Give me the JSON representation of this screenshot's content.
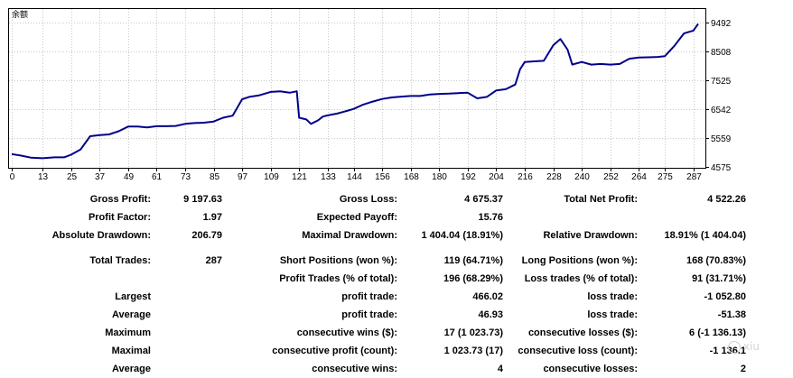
{
  "chart_data": {
    "type": "line",
    "title": "余额",
    "x": [
      0,
      4,
      8,
      13,
      18,
      22,
      25,
      29,
      33,
      37,
      41,
      45,
      49,
      53,
      57,
      61,
      65,
      69,
      73,
      77,
      81,
      85,
      89,
      93,
      97,
      100,
      104,
      109,
      113,
      117,
      120,
      121,
      124,
      126,
      129,
      131,
      133,
      137,
      141,
      144,
      148,
      152,
      156,
      160,
      164,
      168,
      172,
      176,
      180,
      184,
      188,
      192,
      196,
      200,
      204,
      208,
      212,
      214,
      216,
      220,
      224,
      228,
      231,
      234,
      236,
      240,
      244,
      248,
      252,
      256,
      260,
      264,
      268,
      272,
      275,
      279,
      283,
      287,
      289
    ],
    "y": [
      5010,
      4960,
      4890,
      4870,
      4900,
      4900,
      4990,
      5170,
      5620,
      5660,
      5680,
      5790,
      5950,
      5950,
      5920,
      5960,
      5960,
      5970,
      6040,
      6070,
      6080,
      6120,
      6250,
      6320,
      6880,
      6960,
      7010,
      7130,
      7150,
      7100,
      7150,
      6250,
      6190,
      6040,
      6160,
      6290,
      6330,
      6390,
      6480,
      6550,
      6700,
      6800,
      6890,
      6940,
      6970,
      6990,
      6990,
      7040,
      7060,
      7070,
      7090,
      7100,
      6910,
      6960,
      7180,
      7220,
      7380,
      7900,
      8150,
      8170,
      8190,
      8720,
      8930,
      8570,
      8060,
      8150,
      8060,
      8080,
      8060,
      8080,
      8260,
      8300,
      8310,
      8320,
      8350,
      8700,
      9120,
      9220,
      9450
    ],
    "ylim": [
      4575,
      9492
    ],
    "xlim": [
      0,
      289
    ],
    "x_ticks": [
      "0",
      "13",
      "25",
      "37",
      "49",
      "61",
      "73",
      "85",
      "97",
      "109",
      "121",
      "133",
      "144",
      "156",
      "168",
      "180",
      "192",
      "204",
      "216",
      "228",
      "240",
      "252",
      "264",
      "275",
      "287"
    ],
    "y_ticks": [
      "9492",
      "8508",
      "7525",
      "6542",
      "5559",
      "4575"
    ],
    "grid": true,
    "line_color": "#00008b"
  },
  "stats": {
    "rows": [
      {
        "c1_label": "Gross Profit:",
        "c1_value": "9 197.63",
        "c2_label": "Gross Loss:",
        "c2_value": "4 675.37",
        "c3_label": "Total Net Profit:",
        "c3_value": "4 522.26"
      },
      {
        "c1_label": "Profit Factor:",
        "c1_value": "1.97",
        "c2_label": "Expected Payoff:",
        "c2_value": "15.76",
        "c3_label": "",
        "c3_value": ""
      },
      {
        "c1_label": "Absolute Drawdown:",
        "c1_value": "206.79",
        "c2_label": "Maximal Drawdown:",
        "c2_value": "1 404.04 (18.91%)",
        "c3_label": "Relative Drawdown:",
        "c3_value": "18.91% (1 404.04)"
      },
      {
        "c1_label": "Total Trades:",
        "c1_value": "287",
        "c2_label": "Short Positions (won %):",
        "c2_value": "119 (64.71%)",
        "c3_label": "Long Positions (won %):",
        "c3_value": "168 (70.83%)"
      },
      {
        "c1_label": "",
        "c1_value": "",
        "c2_label": "Profit Trades (% of total):",
        "c2_value": "196 (68.29%)",
        "c3_label": "Loss trades (% of total):",
        "c3_value": "91 (31.71%)"
      },
      {
        "c1_label": "Largest",
        "c1_value": "",
        "c2_label": "profit trade:",
        "c2_value": "466.02",
        "c3_label": "loss trade:",
        "c3_value": "-1 052.80"
      },
      {
        "c1_label": "Average",
        "c1_value": "",
        "c2_label": "profit trade:",
        "c2_value": "46.93",
        "c3_label": "loss trade:",
        "c3_value": "-51.38"
      },
      {
        "c1_label": "Maximum",
        "c1_value": "",
        "c2_label": "consecutive wins ($):",
        "c2_value": "17 (1 023.73)",
        "c3_label": "consecutive losses ($):",
        "c3_value": "6 (-1 136.13)"
      },
      {
        "c1_label": "Maximal",
        "c1_value": "",
        "c2_label": "consecutive profit (count):",
        "c2_value": "1 023.73 (17)",
        "c3_label": "consecutive loss (count):",
        "c3_value": "-1 136.1"
      },
      {
        "c1_label": "Average",
        "c1_value": "",
        "c2_label": "consecutive wins:",
        "c2_value": "4",
        "c3_label": "consecutive losses:",
        "c3_value": "2"
      }
    ]
  },
  "watermark": {
    "text": "xiu"
  }
}
